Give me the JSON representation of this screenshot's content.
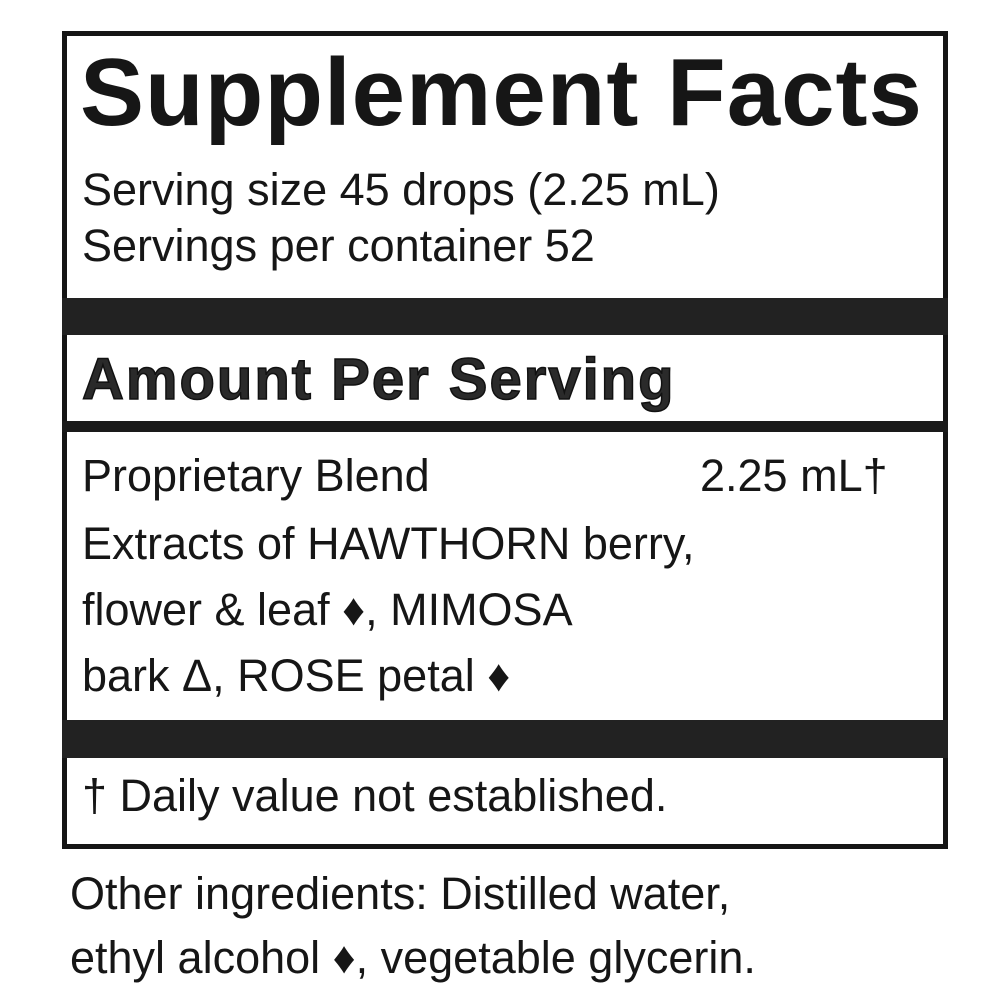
{
  "title": "Supplement Facts",
  "serving_size": "Serving size 45 drops (2.25 mL)",
  "servings_per_container": "Servings per container 52",
  "amount_header": "Amount Per Serving",
  "blend": {
    "name": "Proprietary Blend",
    "amount": "2.25 mL†",
    "lines": [
      "Extracts of HAWTHORN berry,",
      "flower & leaf ♦, MIMOSA",
      "bark Δ, ROSE petal ♦"
    ]
  },
  "footnote": "† Daily value not established.",
  "other_ingredients": [
    "Other ingredients: Distilled water,",
    "ethyl alcohol ♦, vegetable glycerin."
  ]
}
